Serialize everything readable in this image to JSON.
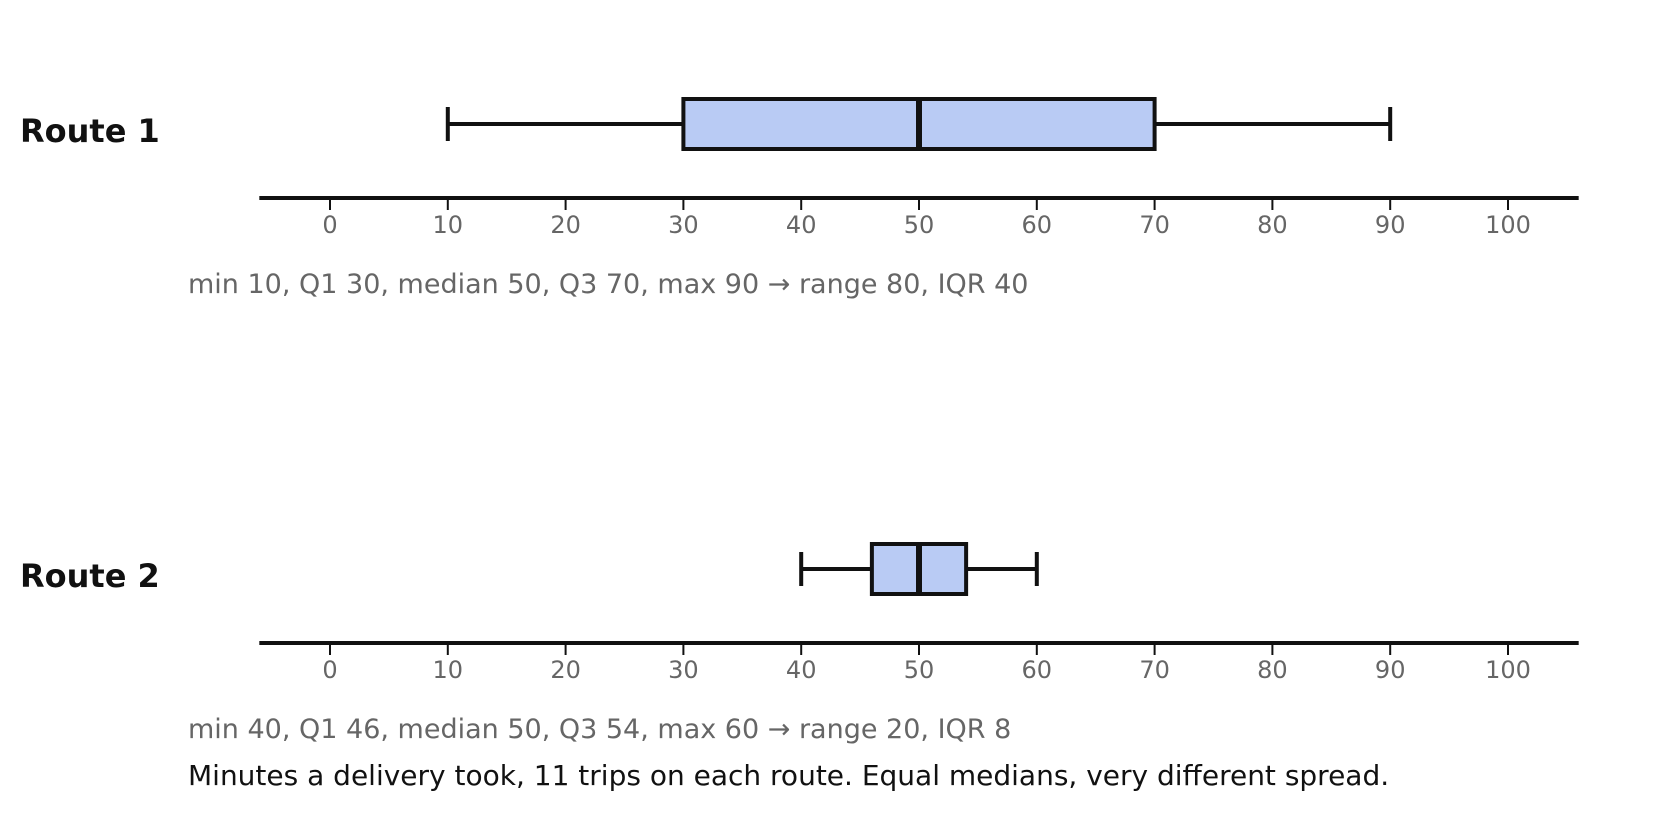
{
  "chart_data": {
    "type": "boxplot",
    "orientation": "horizontal",
    "unit": "minutes",
    "xlim": [
      -6,
      106
    ],
    "xticks": [
      0,
      10,
      20,
      30,
      40,
      50,
      60,
      70,
      80,
      90,
      100
    ],
    "box_color": "#b9cbf4",
    "line_color": "#111111",
    "series": [
      {
        "name": "Route 1",
        "min": 10,
        "q1": 30,
        "median": 50,
        "q3": 70,
        "max": 90,
        "summary": "min 10,  Q1 30,  median 50,  Q3 70,  max 90   →   range 80,  IQR 40"
      },
      {
        "name": "Route 2",
        "min": 40,
        "q1": 46,
        "median": 50,
        "q3": 54,
        "max": 60,
        "summary": "min 40,  Q1 46,  median 50,  Q3 54,  max 60   →   range 20,  IQR 8"
      }
    ],
    "caption": "Minutes a delivery took, 11 trips on each route. Equal medians, very different spread."
  }
}
